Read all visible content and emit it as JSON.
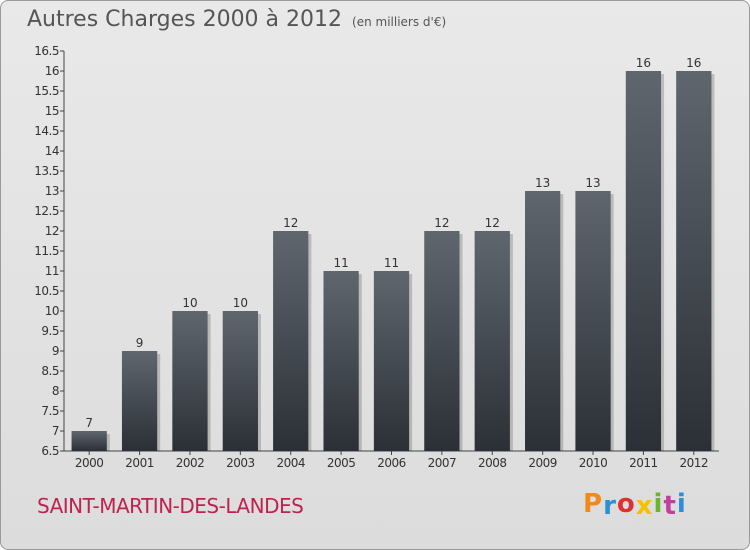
{
  "header": {
    "title": "Autres Charges 2000 à 2012",
    "unit": "(en milliers d'€)"
  },
  "footer": {
    "commune": "SAINT-MARTIN-DES-LANDES",
    "brand": "Proxiti"
  },
  "brand_colors": [
    "#f08a1c",
    "#2a8fd6",
    "#e0302f",
    "#f5c200",
    "#6bb52c",
    "#c040a0",
    "#2a8fd6"
  ],
  "colors": {
    "bar_top": "#5f666e",
    "bar_bottom": "#2b3036",
    "title": "#555555",
    "commune": "#c0224f"
  },
  "chart_data": {
    "type": "bar",
    "title": "Autres Charges 2000 à 2012",
    "subtitle": "(en milliers d'€)",
    "categories": [
      "2000",
      "2001",
      "2002",
      "2003",
      "2004",
      "2005",
      "2006",
      "2007",
      "2008",
      "2009",
      "2010",
      "2011",
      "2012"
    ],
    "values": [
      7,
      9,
      10,
      10,
      12,
      11,
      11,
      12,
      12,
      13,
      13,
      16,
      16
    ],
    "ylim": [
      6.5,
      16.5
    ],
    "yticks": [
      6.5,
      7,
      7.5,
      8,
      8.5,
      9,
      9.5,
      10,
      10.5,
      11,
      11.5,
      12,
      12.5,
      13,
      13.5,
      14,
      14.5,
      15,
      15.5,
      16,
      16.5
    ],
    "data_labels": true,
    "grid": false
  }
}
